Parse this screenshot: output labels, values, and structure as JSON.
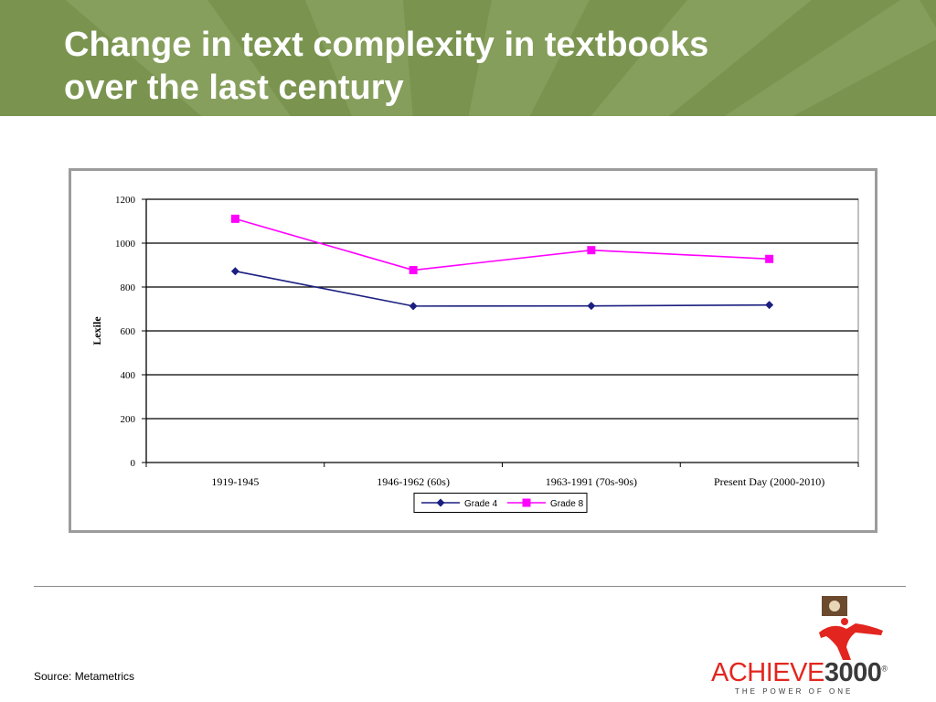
{
  "title_lines": [
    "Change in text complexity in textbooks",
    "over the last century"
  ],
  "source_text": "Source: Metametrics",
  "logo": {
    "word_a": "ACHIEVE",
    "word_b": "3000",
    "reg_mark": "®",
    "tagline": "THE POWER OF ONE"
  },
  "colors": {
    "banner": "#7a9450",
    "grade4": "#1b1f80",
    "grade8": "#ff00ff",
    "logo_red": "#e2261f"
  },
  "chart_data": {
    "type": "line",
    "categories": [
      "1919-1945",
      "1946-1962 (60s)",
      "1963-1991 (70s-90s)",
      "Present Day (2000-2010)"
    ],
    "series": [
      {
        "name": "Grade 4",
        "values": [
          872,
          713,
          714,
          718
        ],
        "color": "#1b1f80",
        "marker": "diamond"
      },
      {
        "name": "Grade 8",
        "values": [
          1111,
          877,
          968,
          928
        ],
        "color": "#ff00ff",
        "marker": "square"
      }
    ],
    "ylabel": "Lexile",
    "xlabel": "",
    "ylim": [
      0,
      1200
    ],
    "yticks": [
      0,
      200,
      400,
      600,
      800,
      1000,
      1200
    ],
    "grid": true,
    "legend_position": "bottom"
  }
}
